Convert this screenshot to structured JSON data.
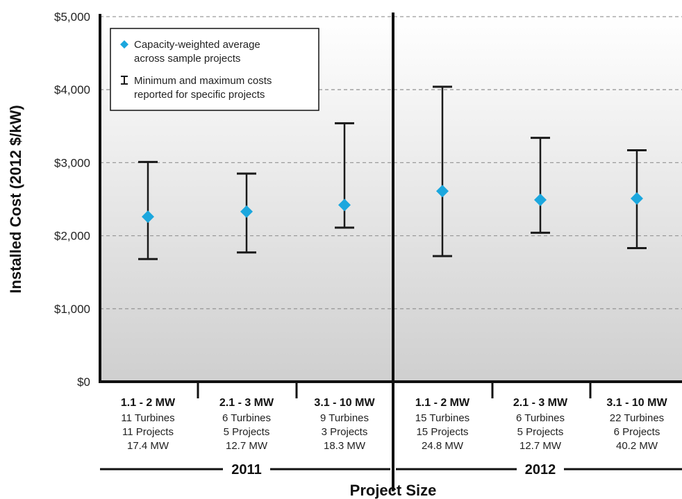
{
  "chart_data": {
    "type": "scatter",
    "xlabel": "Project Size",
    "ylabel": "Installed Cost (2012 $/kW)",
    "ylim": [
      0,
      5000
    ],
    "yticks": [
      0,
      1000,
      2000,
      3000,
      4000,
      5000
    ],
    "ytick_labels": [
      "$0",
      "$1,000",
      "$2,000",
      "$3,000",
      "$4,000",
      "$5,000"
    ],
    "grid": "dashed horizontal",
    "legend": {
      "placement": "top-left",
      "items": [
        {
          "marker": "diamond",
          "line1": "Capacity-weighted average",
          "line2": "across sample projects"
        },
        {
          "marker": "errorbar",
          "line1": "Minimum and maximum costs",
          "line2": "reported for specific projects"
        }
      ]
    },
    "groups": [
      {
        "label": "2011"
      },
      {
        "label": "2012"
      }
    ],
    "categories": [
      {
        "group": 0,
        "size": "1.1 - 2 MW",
        "turbines": "11 Turbines",
        "projects": "11 Projects",
        "capacity": "17.4 MW",
        "avg": 2260,
        "min": 1680,
        "max": 3010
      },
      {
        "group": 0,
        "size": "2.1 - 3 MW",
        "turbines": "6 Turbines",
        "projects": "5 Projects",
        "capacity": "12.7 MW",
        "avg": 2330,
        "min": 1770,
        "max": 2850
      },
      {
        "group": 0,
        "size": "3.1 - 10 MW",
        "turbines": "9 Turbines",
        "projects": "3 Projects",
        "capacity": "18.3 MW",
        "avg": 2420,
        "min": 2110,
        "max": 3540
      },
      {
        "group": 1,
        "size": "1.1 - 2 MW",
        "turbines": "15 Turbines",
        "projects": "15 Projects",
        "capacity": "24.8 MW",
        "avg": 2610,
        "min": 1720,
        "max": 4040
      },
      {
        "group": 1,
        "size": "2.1 - 3 MW",
        "turbines": "6 Turbines",
        "projects": "5 Projects",
        "capacity": "12.7 MW",
        "avg": 2490,
        "min": 2040,
        "max": 3340
      },
      {
        "group": 1,
        "size": "3.1 - 10 MW",
        "turbines": "22 Turbines",
        "projects": "6 Projects",
        "capacity": "40.2 MW",
        "avg": 2510,
        "min": 1830,
        "max": 3170
      }
    ],
    "colors": {
      "marker": "#1ba7de",
      "errorbar": "#1a1a1a",
      "grid": "#9a9a9a",
      "bg_top": "#ffffff",
      "bg_bottom": "#cfcfcf"
    }
  }
}
